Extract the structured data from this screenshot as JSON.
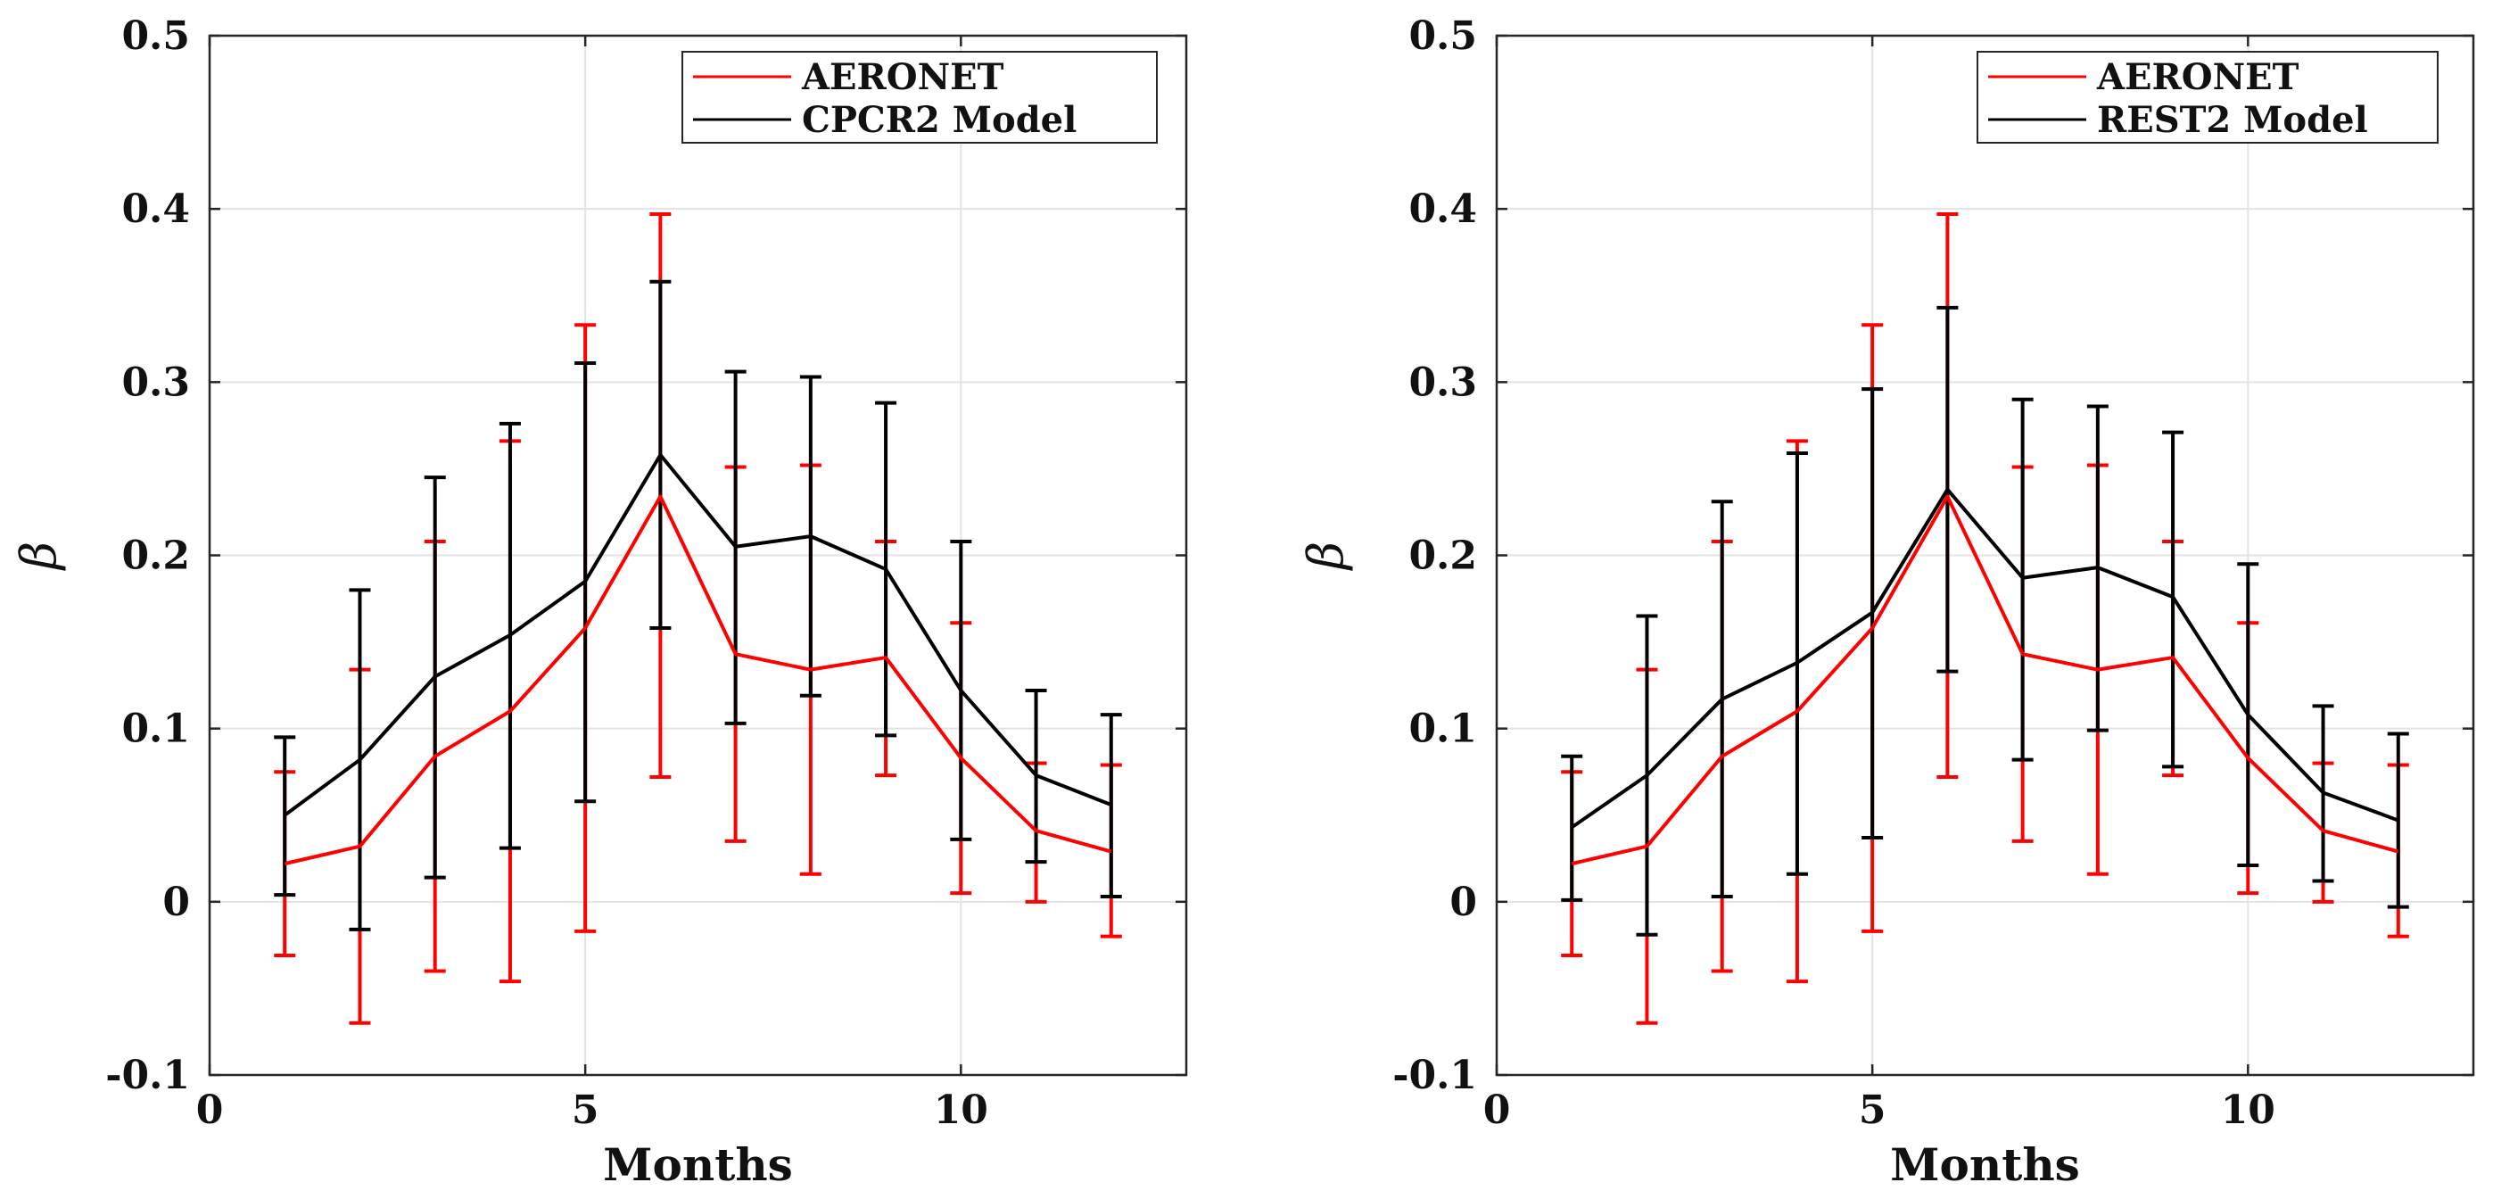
{
  "chart_data": [
    {
      "type": "line",
      "id": "left",
      "xlabel": "Months",
      "ylabel": "β",
      "xlim": [
        0,
        13
      ],
      "ylim": [
        -0.1,
        0.5
      ],
      "xticks": [
        0,
        5,
        10
      ],
      "xtick_labels": [
        "0",
        "5",
        "10"
      ],
      "yticks": [
        -0.1,
        0,
        0.1,
        0.2,
        0.3,
        0.4,
        0.5
      ],
      "ytick_labels": [
        "-0.1",
        "0",
        "0.1",
        "0.2",
        "0.3",
        "0.4",
        "0.5"
      ],
      "grid": true,
      "legend_position": "top-right",
      "x": [
        1,
        2,
        3,
        4,
        5,
        6,
        7,
        8,
        9,
        10,
        11,
        12
      ],
      "series": [
        {
          "name": "AERONET",
          "color": "#ff0000",
          "values": [
            0.022,
            0.032,
            0.084,
            0.11,
            0.158,
            0.234,
            0.143,
            0.134,
            0.141,
            0.083,
            0.041,
            0.029
          ],
          "err_low": [
            -0.031,
            -0.07,
            -0.04,
            -0.046,
            -0.017,
            0.072,
            0.035,
            0.016,
            0.073,
            0.005,
            0.0,
            -0.02
          ],
          "err_high": [
            0.075,
            0.134,
            0.208,
            0.266,
            0.333,
            0.397,
            0.251,
            0.252,
            0.208,
            0.161,
            0.08,
            0.079
          ]
        },
        {
          "name": "CPCR2 Model",
          "color": "#000000",
          "values": [
            0.05,
            0.082,
            0.13,
            0.154,
            0.185,
            0.258,
            0.205,
            0.211,
            0.192,
            0.122,
            0.073,
            0.056
          ],
          "err_low": [
            0.004,
            -0.016,
            0.014,
            0.031,
            0.058,
            0.158,
            0.103,
            0.119,
            0.096,
            0.036,
            0.023,
            0.003
          ],
          "err_high": [
            0.095,
            0.18,
            0.245,
            0.276,
            0.311,
            0.358,
            0.306,
            0.303,
            0.288,
            0.208,
            0.122,
            0.108
          ]
        }
      ]
    },
    {
      "type": "line",
      "id": "right",
      "xlabel": "Months",
      "ylabel": "β",
      "xlim": [
        0,
        13
      ],
      "ylim": [
        -0.1,
        0.5
      ],
      "xticks": [
        0,
        5,
        10
      ],
      "xtick_labels": [
        "0",
        "5",
        "10"
      ],
      "yticks": [
        -0.1,
        0,
        0.1,
        0.2,
        0.3,
        0.4,
        0.5
      ],
      "ytick_labels": [
        "-0.1",
        "0",
        "0.1",
        "0.2",
        "0.3",
        "0.4",
        "0.5"
      ],
      "grid": true,
      "legend_position": "top-right",
      "x": [
        1,
        2,
        3,
        4,
        5,
        6,
        7,
        8,
        9,
        10,
        11,
        12
      ],
      "series": [
        {
          "name": "AERONET",
          "color": "#ff0000",
          "values": [
            0.022,
            0.032,
            0.084,
            0.11,
            0.158,
            0.234,
            0.143,
            0.134,
            0.141,
            0.083,
            0.041,
            0.029
          ],
          "err_low": [
            -0.031,
            -0.07,
            -0.04,
            -0.046,
            -0.017,
            0.072,
            0.035,
            0.016,
            0.073,
            0.005,
            0.0,
            -0.02
          ],
          "err_high": [
            0.075,
            0.134,
            0.208,
            0.266,
            0.333,
            0.397,
            0.251,
            0.252,
            0.208,
            0.161,
            0.08,
            0.079
          ]
        },
        {
          "name": "REST2 Model",
          "color": "#000000",
          "values": [
            0.043,
            0.073,
            0.117,
            0.138,
            0.167,
            0.238,
            0.187,
            0.193,
            0.176,
            0.108,
            0.063,
            0.047
          ],
          "err_low": [
            0.001,
            -0.019,
            0.003,
            0.016,
            0.037,
            0.133,
            0.082,
            0.099,
            0.078,
            0.021,
            0.012,
            -0.003
          ],
          "err_high": [
            0.084,
            0.165,
            0.231,
            0.259,
            0.296,
            0.343,
            0.29,
            0.286,
            0.271,
            0.195,
            0.113,
            0.097
          ]
        }
      ]
    }
  ]
}
